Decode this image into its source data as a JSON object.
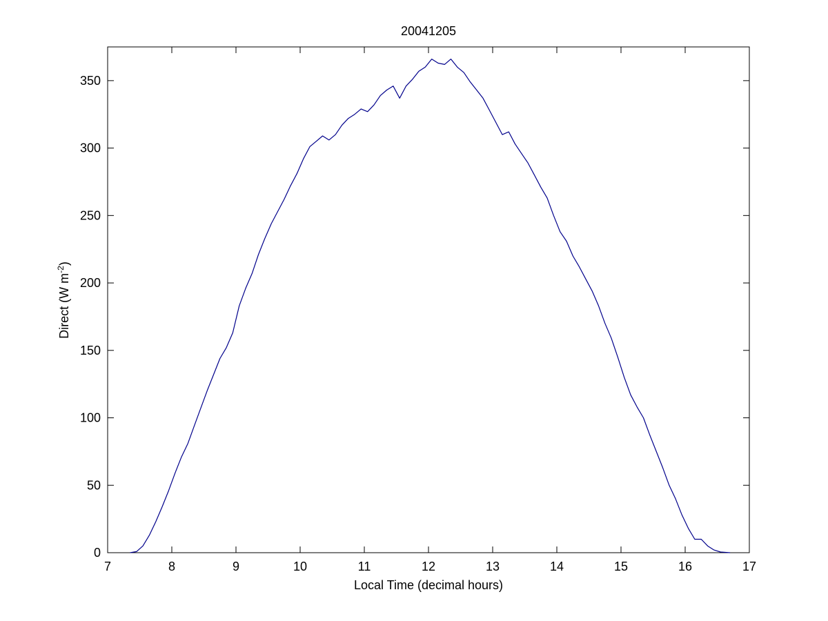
{
  "chart_data": {
    "type": "line",
    "title": "20041205",
    "xlabel": "Local Time (decimal hours)",
    "ylabel": {
      "prefix": "Direct (W m",
      "superscript": "-2",
      "suffix": ")"
    },
    "xlim": [
      7,
      17
    ],
    "ylim": [
      0,
      375
    ],
    "xticks": [
      7,
      8,
      9,
      10,
      11,
      12,
      13,
      14,
      15,
      16,
      17
    ],
    "yticks": [
      0,
      50,
      100,
      150,
      200,
      250,
      300,
      350
    ],
    "grid": false,
    "series": [
      {
        "color": "#00008b",
        "points": [
          [
            7.35,
            0
          ],
          [
            7.45,
            0.8
          ],
          [
            7.55,
            5
          ],
          [
            7.65,
            13
          ],
          [
            7.75,
            23
          ],
          [
            7.85,
            34
          ],
          [
            7.95,
            46
          ],
          [
            8.05,
            59
          ],
          [
            8.15,
            71
          ],
          [
            8.25,
            81
          ],
          [
            8.35,
            94
          ],
          [
            8.45,
            107
          ],
          [
            8.55,
            120
          ],
          [
            8.65,
            132
          ],
          [
            8.75,
            144
          ],
          [
            8.85,
            152
          ],
          [
            8.95,
            163
          ],
          [
            9.05,
            183
          ],
          [
            9.15,
            196
          ],
          [
            9.25,
            207
          ],
          [
            9.35,
            221
          ],
          [
            9.45,
            233
          ],
          [
            9.55,
            244
          ],
          [
            9.65,
            253
          ],
          [
            9.75,
            262
          ],
          [
            9.85,
            272
          ],
          [
            9.95,
            281
          ],
          [
            10.05,
            292
          ],
          [
            10.15,
            301
          ],
          [
            10.25,
            305
          ],
          [
            10.35,
            309
          ],
          [
            10.45,
            306
          ],
          [
            10.55,
            310
          ],
          [
            10.65,
            317
          ],
          [
            10.75,
            322
          ],
          [
            10.85,
            325
          ],
          [
            10.95,
            329
          ],
          [
            11.05,
            327
          ],
          [
            11.15,
            332
          ],
          [
            11.25,
            339
          ],
          [
            11.35,
            343
          ],
          [
            11.45,
            346
          ],
          [
            11.55,
            337
          ],
          [
            11.65,
            346
          ],
          [
            11.75,
            351
          ],
          [
            11.85,
            357
          ],
          [
            11.95,
            360
          ],
          [
            12.05,
            366
          ],
          [
            12.15,
            363
          ],
          [
            12.25,
            362
          ],
          [
            12.35,
            366
          ],
          [
            12.45,
            360
          ],
          [
            12.55,
            356
          ],
          [
            12.65,
            349
          ],
          [
            12.75,
            343
          ],
          [
            12.85,
            337
          ],
          [
            12.95,
            328
          ],
          [
            13.05,
            319
          ],
          [
            13.15,
            310
          ],
          [
            13.25,
            312
          ],
          [
            13.35,
            303
          ],
          [
            13.45,
            296
          ],
          [
            13.55,
            289
          ],
          [
            13.65,
            280
          ],
          [
            13.75,
            271
          ],
          [
            13.85,
            263
          ],
          [
            13.95,
            250
          ],
          [
            14.05,
            238
          ],
          [
            14.15,
            231
          ],
          [
            14.25,
            220
          ],
          [
            14.35,
            212
          ],
          [
            14.45,
            203
          ],
          [
            14.55,
            194
          ],
          [
            14.65,
            183
          ],
          [
            14.75,
            170
          ],
          [
            14.85,
            159
          ],
          [
            14.95,
            145
          ],
          [
            15.05,
            130
          ],
          [
            15.15,
            117
          ],
          [
            15.25,
            108
          ],
          [
            15.35,
            100
          ],
          [
            15.45,
            87
          ],
          [
            15.55,
            75
          ],
          [
            15.65,
            63
          ],
          [
            15.75,
            50
          ],
          [
            15.85,
            40
          ],
          [
            15.95,
            28
          ],
          [
            16.05,
            18
          ],
          [
            16.15,
            10
          ],
          [
            16.25,
            10
          ],
          [
            16.35,
            5
          ],
          [
            16.45,
            2
          ],
          [
            16.55,
            0.5
          ],
          [
            16.7,
            0
          ]
        ]
      }
    ]
  }
}
